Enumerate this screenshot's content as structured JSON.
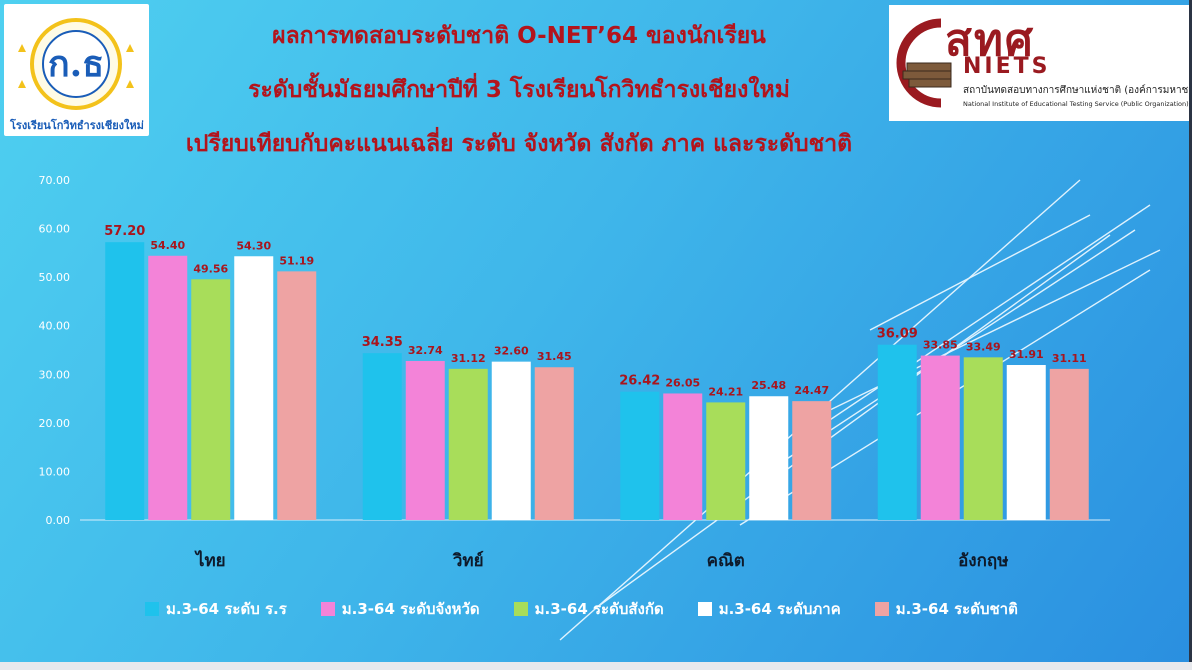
{
  "slide": {
    "titles": [
      "ผลการทดสอบระดับชาติ O-NET’64 ของนักเรียน",
      "ระดับชั้นมัธยมศึกษาปีที่ 3 โรงเรียนโกวิทธำรงเชียงใหม่",
      "เปรียบเทียบกับคะแนนเฉลี่ย ระดับ จังหวัด สังกัด ภาค และระดับชาติ"
    ],
    "logo_left": {
      "name": "school-logo",
      "text_bottom": "โรงเรียนโกวิทธำรงเชียงใหม่"
    },
    "logo_right": {
      "name": "niets-logo",
      "letters": "สทศ",
      "word": "NIETS",
      "name_th": "สถาบันทดสอบทางการศึกษาแห่งชาติ (องค์การมหาชน)",
      "name_en": "National Institute of Educational Testing Service (Public Organization)"
    }
  },
  "chart_data": {
    "type": "bar",
    "categories": [
      "ไทย",
      "วิทย์",
      "คณิต",
      "อังกฤษ"
    ],
    "series": [
      {
        "name": "ม.3-64 ระดับ ร.ร",
        "color": "#1fc2ec",
        "values": [
          57.2,
          34.35,
          26.42,
          36.09
        ],
        "labels": [
          "57.20",
          "34.35",
          "26.42",
          "36.09"
        ]
      },
      {
        "name": "ม.3-64 ระดับจังหวัด",
        "color": "#f383d8",
        "values": [
          54.4,
          32.74,
          26.05,
          33.85
        ],
        "labels": [
          "54.40",
          "32.74",
          "26.05",
          "33.85"
        ]
      },
      {
        "name": "ม.3-64 ระดับสังกัด",
        "color": "#a8dd5a",
        "values": [
          49.56,
          31.12,
          24.21,
          33.49
        ],
        "labels": [
          "49.56",
          "31.12",
          "24.21",
          "33.49"
        ]
      },
      {
        "name": "ม.3-64 ระดับภาค",
        "color": "#ffffff",
        "values": [
          54.3,
          32.6,
          25.48,
          31.91
        ],
        "labels": [
          "54.30",
          "32.60",
          "25.48",
          "31.91"
        ]
      },
      {
        "name": "ม.3-64 ระดับชาติ",
        "color": "#eea3a3",
        "values": [
          51.19,
          31.45,
          24.47,
          31.11
        ],
        "labels": [
          "51.19",
          "31.45",
          "24.47",
          "31.11"
        ]
      }
    ],
    "ylim": [
      0,
      70
    ],
    "yticks": [
      "0.00",
      "10.00",
      "20.00",
      "30.00",
      "40.00",
      "50.00",
      "60.00",
      "70.00"
    ],
    "ytick_values": [
      0,
      10,
      20,
      30,
      40,
      50,
      60,
      70
    ],
    "label_color": "#a8151d",
    "grid": false,
    "legend": "bottom"
  }
}
